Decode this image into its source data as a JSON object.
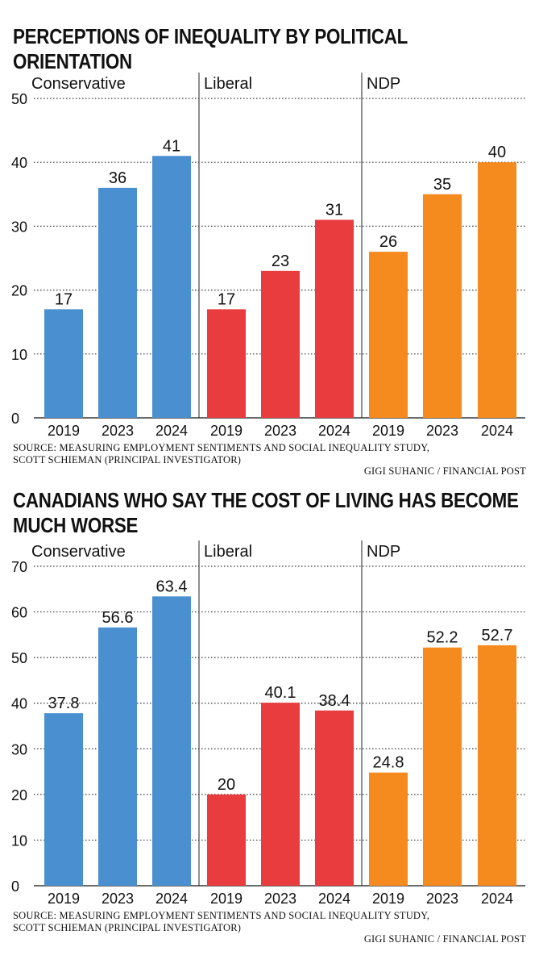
{
  "charts": [
    {
      "title_line1": "PERCEPTIONS OF INEQUALITY BY POLITICAL",
      "title_line2": "ORIENTATION",
      "source_line1": "SOURCE: MEASURING EMPLOYMENT SENTIMENTS AND SOCIAL INEQUALITY STUDY,",
      "source_line2": "SCOTT SCHIEMAN (PRINCIPAL INVESTIGATOR)",
      "credit": "GIGI SUHANIC / FINANCIAL POST"
    },
    {
      "title_line1": "CANADIANS WHO SAY THE COST OF LIVING HAS BECOME",
      "title_line2": "MUCH WORSE",
      "source_line1": "SOURCE: MEASURING EMPLOYMENT SENTIMENTS AND SOCIAL INEQUALITY STUDY,",
      "source_line2": "SCOTT SCHIEMAN (PRINCIPAL INVESTIGATOR)",
      "credit": "GIGI SUHANIC / FINANCIAL POST"
    }
  ],
  "colors": {
    "Conservative": "#4a8fd0",
    "Liberal": "#e93c3e",
    "NDP": "#f58a1f"
  },
  "chart_data": [
    {
      "type": "bar",
      "title": "PERCEPTIONS OF INEQUALITY BY POLITICAL ORIENTATION",
      "groups": [
        "Conservative",
        "Liberal",
        "NDP"
      ],
      "categories": [
        "2019",
        "2023",
        "2024"
      ],
      "series": [
        {
          "name": "Conservative",
          "values": [
            17,
            36,
            41
          ],
          "labels": [
            "17",
            "36",
            "41"
          ]
        },
        {
          "name": "Liberal",
          "values": [
            17,
            23,
            31
          ],
          "labels": [
            "17",
            "23",
            "31"
          ]
        },
        {
          "name": "NDP",
          "values": [
            26,
            35,
            40
          ],
          "labels": [
            "26",
            "35",
            "40"
          ]
        }
      ],
      "yticks": [
        "0",
        "10",
        "20",
        "30",
        "40",
        "50"
      ],
      "ylim": [
        0,
        50
      ],
      "grid": true
    },
    {
      "type": "bar",
      "title": "CANADIANS WHO SAY THE COST OF LIVING HAS BECOME MUCH WORSE",
      "groups": [
        "Conservative",
        "Liberal",
        "NDP"
      ],
      "categories": [
        "2019",
        "2023",
        "2024"
      ],
      "series": [
        {
          "name": "Conservative",
          "values": [
            37.8,
            56.6,
            63.4
          ],
          "labels": [
            "37.8",
            "56.6",
            "63.4"
          ]
        },
        {
          "name": "Liberal",
          "values": [
            20,
            40.1,
            38.4
          ],
          "labels": [
            "20",
            "40.1",
            "38.4"
          ]
        },
        {
          "name": "NDP",
          "values": [
            24.8,
            52.2,
            52.7
          ],
          "labels": [
            "24.8",
            "52.2",
            "52.7"
          ]
        }
      ],
      "yticks": [
        "0",
        "10",
        "20",
        "30",
        "40",
        "50",
        "60",
        "70"
      ],
      "ylim": [
        0,
        70
      ],
      "grid": true
    }
  ]
}
